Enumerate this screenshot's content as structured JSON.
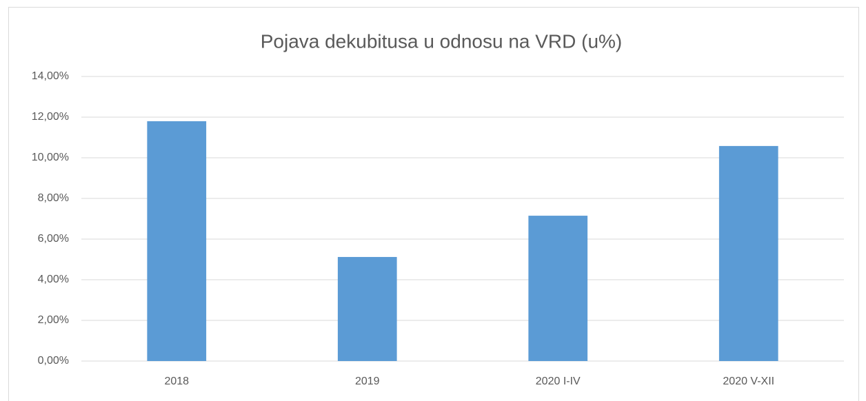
{
  "chart_data": {
    "type": "bar",
    "title": "Pojava dekubitusa u odnosu na VRD (u%)",
    "categories": [
      "2018",
      "2019",
      "2020 I-IV",
      "2020 V-XII"
    ],
    "values": [
      11.8,
      5.12,
      7.15,
      10.58
    ],
    "color": "#5b9bd5",
    "ylim": [
      0,
      14
    ],
    "yticks": [
      {
        "value": 0,
        "label": "0,00%"
      },
      {
        "value": 2,
        "label": "2,00%"
      },
      {
        "value": 4,
        "label": "4,00%"
      },
      {
        "value": 6,
        "label": "6,00%"
      },
      {
        "value": 8,
        "label": "8,00%"
      },
      {
        "value": 10,
        "label": "10,00%"
      },
      {
        "value": 12,
        "label": "12,00%"
      },
      {
        "value": 14,
        "label": "14,00%"
      }
    ],
    "grid": true
  }
}
